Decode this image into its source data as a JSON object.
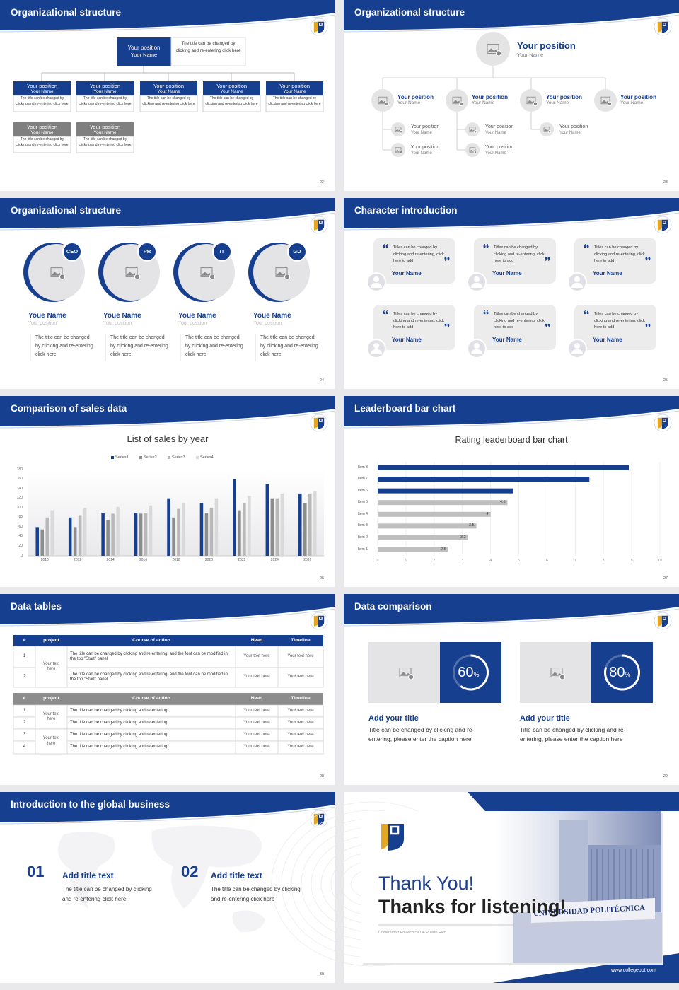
{
  "slides": [
    {
      "title": "Organizational structure",
      "page": 22,
      "top": {
        "position": "Your position",
        "name": "Your Name",
        "text": "The title can be changed by clicking and re-entering click here"
      },
      "row1": [
        {
          "position": "Your position",
          "name": "Your Name",
          "text": "The title can be changed by clicking and re-entering click here"
        },
        {
          "position": "Your position",
          "name": "Your Name",
          "text": "The title can be changed by clicking and re-entering click here"
        },
        {
          "position": "Your position",
          "name": "Your Name",
          "text": "The title can be changed by clicking and re-entering click here"
        },
        {
          "position": "Your position",
          "name": "Your Name",
          "text": "The title can be changed by clicking and re-entering click here"
        },
        {
          "position": "Your position",
          "name": "Your Name",
          "text": "The title can be changed by clicking and re-entering click here"
        }
      ],
      "row2": [
        {
          "position": "Your position",
          "name": "Your Name",
          "text": "The title can be changed by clicking and re-entering click here"
        },
        {
          "position": "Your position",
          "name": "Your Name",
          "text": "The title can be changed by clicking and re-entering click here"
        }
      ]
    },
    {
      "title": "Organizational structure",
      "page": 23,
      "top": {
        "position": "Your position",
        "name": "Your Name"
      },
      "level1": [
        {
          "position": "Your position",
          "name": "Your Name"
        },
        {
          "position": "Your position",
          "name": "Your Name"
        },
        {
          "position": "Your position",
          "name": "Your Name"
        },
        {
          "position": "Your position",
          "name": "Your Name"
        }
      ],
      "level2": [
        {
          "position": "Your position",
          "name": "Your Name"
        },
        {
          "position": "Your position",
          "name": "Your Name"
        },
        {
          "position": "Your position",
          "name": "Your Name"
        },
        {
          "position": "Your position",
          "name": "Your Name"
        },
        {
          "position": "Your position",
          "name": "Your Name"
        }
      ]
    },
    {
      "title": "Organizational structure",
      "page": 24,
      "people": [
        {
          "tag": "CEO",
          "name": "Youe Name",
          "position": "Your position",
          "text": "The title can be changed by clicking and re-entering click here"
        },
        {
          "tag": "PR",
          "name": "Youe Name",
          "position": "Your position",
          "text": "The title can be changed by clicking and re-entering click here"
        },
        {
          "tag": "IT",
          "name": "Youe Name",
          "position": "Your position",
          "text": "The title can be changed by clicking and re-entering click here"
        },
        {
          "tag": "GD",
          "name": "Youe Name",
          "position": "Your position",
          "text": "The title can be changed by clicking and re-entering click here"
        }
      ]
    },
    {
      "title": "Character introduction",
      "page": 25,
      "cards": [
        {
          "quote": "Titles can be changed by clicking and re-entering, click here to add",
          "name": "Your Name"
        },
        {
          "quote": "Titles can be changed by clicking and re-entering, click here to add",
          "name": "Your Name"
        },
        {
          "quote": "Titles can be changed by clicking and re-entering, click here to add",
          "name": "Your Name"
        },
        {
          "quote": "Titles can be changed by clicking and re-entering, click here to add",
          "name": "Your Name"
        },
        {
          "quote": "Titles can be changed by clicking and re-entering, click here to add",
          "name": "Your Name"
        },
        {
          "quote": "Titles can be changed by clicking and re-entering, click here to add",
          "name": "Your Name"
        }
      ]
    },
    {
      "title": "Comparison of sales data",
      "page": 26
    },
    {
      "title": "Leaderboard bar chart",
      "page": 27
    },
    {
      "title": "Data tables",
      "page": 28,
      "tables": [
        {
          "header": [
            "#",
            "project",
            "Course of action",
            "Head",
            "Timeline"
          ],
          "groups": [
            {
              "project": "Your text here",
              "rows": [
                {
                  "no": 1,
                  "course": "The title can be changed by clicking and re-entering, and the font can be modified in the top \"Start\" panel",
                  "head": "Your text here",
                  "timeline": "Your text here"
                },
                {
                  "no": 2,
                  "course": "The title can be changed by clicking and re-entering, and the font can be modified in the top \"Start\" panel",
                  "head": "Your text here",
                  "timeline": "Your text here"
                }
              ]
            }
          ]
        },
        {
          "header": [
            "#",
            "project",
            "Course of action",
            "Head",
            "Timeline"
          ],
          "groups": [
            {
              "project": "Your text here",
              "rows": [
                {
                  "no": 1,
                  "course": "The title can be changed by clicking and re-entering",
                  "head": "Your text here",
                  "timeline": "Your text here"
                },
                {
                  "no": 2,
                  "course": "The title can be changed by clicking and re-entering",
                  "head": "Your text here",
                  "timeline": "Your text here"
                }
              ]
            },
            {
              "project": "Your text here",
              "rows": [
                {
                  "no": 3,
                  "course": "The title can be changed by clicking and re-entering",
                  "head": "Your text here",
                  "timeline": "Your text here"
                },
                {
                  "no": 4,
                  "course": "The title can be changed by clicking and re-entering",
                  "head": "Your text here",
                  "timeline": "Your text here"
                }
              ]
            }
          ]
        }
      ]
    },
    {
      "title": "Data comparison",
      "page": 29,
      "cards": [
        {
          "percent": {
            "value": 60,
            "label": "60",
            "unit": "%"
          },
          "title": "Add your title",
          "text": "Title can be changed by clicking and re-entering, please enter the caption here"
        },
        {
          "percent": {
            "value": 80,
            "label": "80",
            "unit": "%"
          },
          "title": "Add your title",
          "text": "Title can be changed by clicking and re-entering, please enter the caption here"
        }
      ]
    },
    {
      "title": "Introduction to the global business",
      "page": 30,
      "items": [
        {
          "number": "01",
          "title": "Add title text",
          "text": "The title can be changed by clicking and re-entering click here"
        },
        {
          "number": "02",
          "title": "Add title text",
          "text": "The title can be changed by clicking and re-entering click here"
        }
      ]
    },
    {
      "thanks": "Thank You!",
      "subtitle": "Thanks for listening!",
      "university": "Universidad Politécnica De Puerto Rico",
      "sign": "UNIVERSIDAD POLITÉCNICA",
      "url": "www.collegeppt.com"
    }
  ],
  "chart_data": [
    {
      "type": "bar",
      "title": "List of sales by year",
      "legend": "top",
      "categories": [
        "2010",
        "2012",
        "2014",
        "2016",
        "2018",
        "2020",
        "2022",
        "2024",
        "2026"
      ],
      "series": [
        {
          "name": "Series1",
          "color": "#173f8f",
          "values": [
            60,
            80,
            90,
            90,
            120,
            110,
            160,
            150,
            130
          ]
        },
        {
          "name": "Series2",
          "color": "#8c8c8c",
          "values": [
            55,
            60,
            75,
            88,
            80,
            90,
            95,
            120,
            110
          ]
        },
        {
          "name": "Series3",
          "color": "#b8b8b8",
          "values": [
            80,
            85,
            88,
            90,
            98,
            100,
            110,
            120,
            130
          ]
        },
        {
          "name": "Series4",
          "color": "#d9d9d9",
          "values": [
            95,
            100,
            102,
            105,
            110,
            120,
            125,
            130,
            135
          ]
        }
      ],
      "ylim": [
        0,
        180
      ],
      "yticks": [
        0,
        20,
        40,
        60,
        80,
        100,
        120,
        140,
        160,
        180
      ],
      "grid": false
    },
    {
      "type": "barh",
      "title": "Rating leaderboard bar chart",
      "categories": [
        "Item 1",
        "Item 2",
        "Item 3",
        "Item 4",
        "Item 5",
        "Item 6",
        "Item 7",
        "Item 8"
      ],
      "values": [
        2.5,
        3.2,
        3.5,
        4,
        4.6,
        4.8,
        7.5,
        8.9
      ],
      "value_labels": [
        "2.5",
        "3.2",
        "3.5",
        "4",
        "4.6",
        null,
        null,
        null
      ],
      "colors": [
        "#bfbfbf",
        "#bfbfbf",
        "#bfbfbf",
        "#bfbfbf",
        "#bfbfbf",
        "#173f8f",
        "#173f8f",
        "#173f8f"
      ],
      "xlim": [
        0,
        10
      ],
      "xticks": [
        0,
        1,
        2,
        3,
        4,
        5,
        6,
        7,
        8,
        9,
        10
      ],
      "grid": true
    }
  ]
}
